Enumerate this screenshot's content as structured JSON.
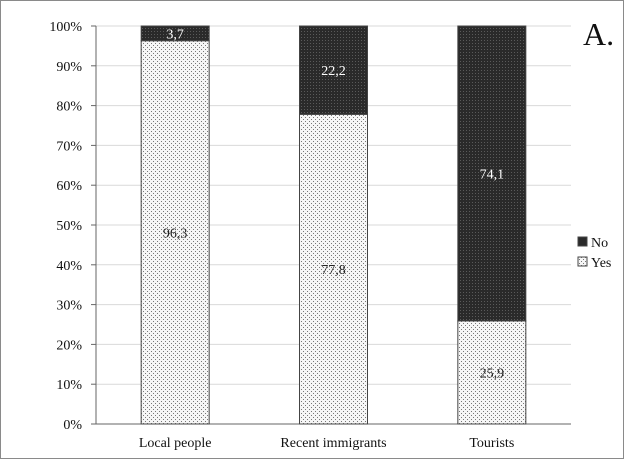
{
  "chart_data": {
    "type": "bar",
    "stacked": true,
    "percent": true,
    "panel_label": "A.",
    "categories": [
      "Local people",
      "Recent immigrants",
      "Tourists"
    ],
    "series": [
      {
        "name": "Yes",
        "values": [
          96.3,
          77.8,
          25.9
        ],
        "labels": [
          "96,3",
          "77,8",
          "25,9"
        ],
        "color": "#f4f4f4",
        "pattern": "light-dots",
        "label_color": "#222222"
      },
      {
        "name": "No",
        "values": [
          3.7,
          22.2,
          74.1
        ],
        "labels": [
          "3,7",
          "22,2",
          "74,1"
        ],
        "color": "#2b2b2b",
        "pattern": "dark-dots",
        "label_color": "#ffffff"
      }
    ],
    "legend": {
      "position": "right",
      "order": [
        "No",
        "Yes"
      ]
    },
    "y_ticks": [
      "0%",
      "10%",
      "20%",
      "30%",
      "40%",
      "50%",
      "60%",
      "70%",
      "80%",
      "90%",
      "100%"
    ],
    "ylim": [
      0,
      100
    ],
    "grid": true
  }
}
